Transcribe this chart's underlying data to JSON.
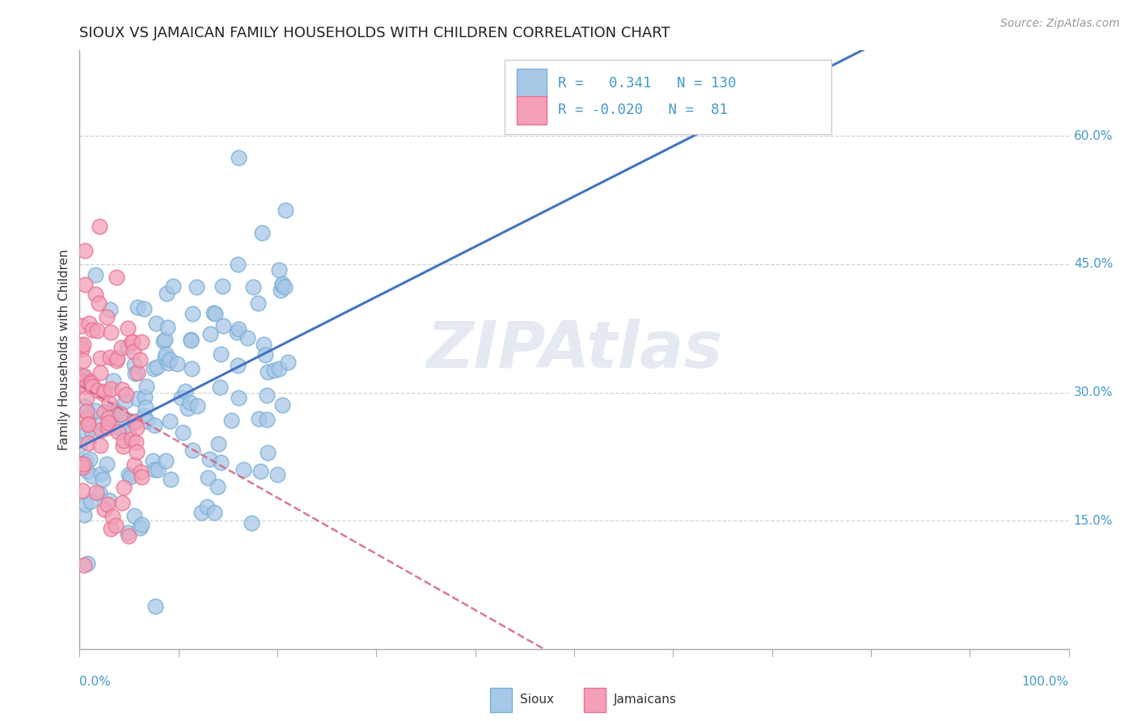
{
  "title": "SIOUX VS JAMAICAN FAMILY HOUSEHOLDS WITH CHILDREN CORRELATION CHART",
  "source": "Source: ZipAtlas.com",
  "ylabel": "Family Households with Children",
  "xlim": [
    0.0,
    1.0
  ],
  "ylim": [
    0.0,
    0.7
  ],
  "y_tick_labels": [
    "15.0%",
    "30.0%",
    "45.0%",
    "60.0%"
  ],
  "y_ticks": [
    0.15,
    0.3,
    0.45,
    0.6
  ],
  "sioux_color": "#a8c8e8",
  "jamaican_color": "#f4a0b8",
  "sioux_edge_color": "#7aafd4",
  "jamaican_edge_color": "#e87090",
  "sioux_line_color": "#4472c4",
  "jamaican_line_color": "#d46080",
  "sioux_R": 0.341,
  "sioux_N": 130,
  "jamaican_R": -0.02,
  "jamaican_N": 81,
  "watermark": "ZIPAtlas",
  "legend_R_color": "#4499cc",
  "legend_N_color": "#4499cc",
  "background_color": "#ffffff",
  "grid_color": "#c8c8c8",
  "title_color": "#222222",
  "source_color": "#999999",
  "ylabel_color": "#333333",
  "axis_color": "#aaaaaa",
  "sioux_seed": 12345,
  "jamaican_seed": 54321
}
